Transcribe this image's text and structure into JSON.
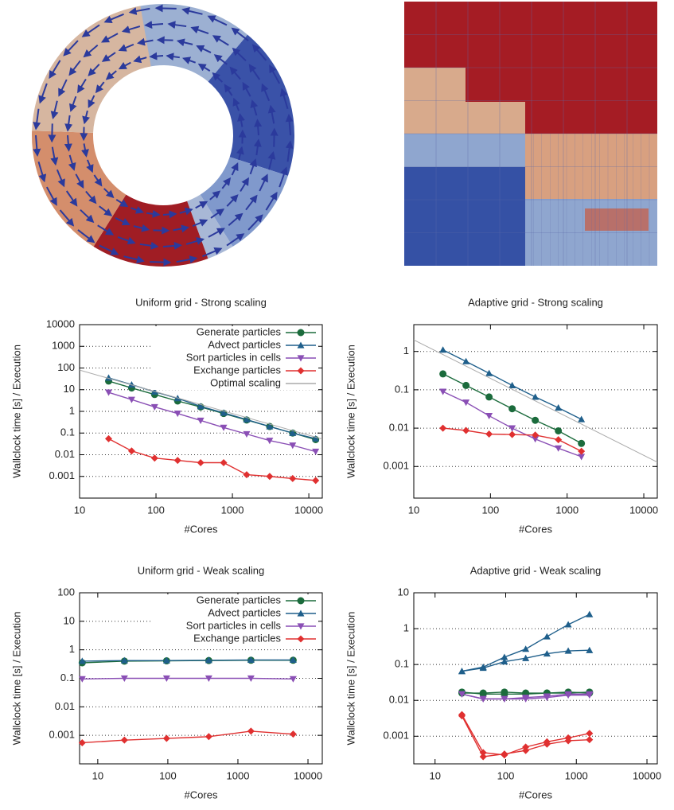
{
  "chart_data": [
    {
      "type": "line",
      "title": "Uniform grid - Strong scaling",
      "xlabel": "#Cores",
      "ylabel": "Wallclock time [s] / Execution",
      "xscale": "log",
      "yscale": "log",
      "xlim": [
        10,
        15000
      ],
      "ylim": [
        0.0001,
        10000
      ],
      "xticks": [
        10,
        100,
        1000,
        10000
      ],
      "yticks": [
        0.001,
        0.01,
        0.1,
        1,
        10,
        100,
        1000,
        10000
      ],
      "grid": true,
      "legend": "top-right",
      "series": [
        {
          "name": "Generate particles",
          "color": "#1b6b3c",
          "marker": "circle",
          "x": [
            24,
            48,
            96,
            192,
            384,
            768,
            1536,
            3072,
            6144,
            12288
          ],
          "values": [
            25,
            12,
            6,
            3,
            1.6,
            0.8,
            0.4,
            0.2,
            0.1,
            0.05
          ]
        },
        {
          "name": "Advect particles",
          "color": "#1f5f8b",
          "marker": "triangle-up",
          "x": [
            24,
            48,
            96,
            192,
            384,
            768,
            1536,
            3072,
            6144,
            12288
          ],
          "values": [
            35,
            17,
            8,
            4,
            1.7,
            0.85,
            0.42,
            0.2,
            0.1,
            0.055
          ]
        },
        {
          "name": "Sort particles in cells",
          "color": "#8a4fb5",
          "marker": "triangle-down",
          "x": [
            24,
            48,
            96,
            192,
            384,
            768,
            1536,
            3072,
            6144,
            12288
          ],
          "values": [
            7.5,
            3.5,
            1.6,
            0.8,
            0.38,
            0.18,
            0.09,
            0.045,
            0.027,
            0.014
          ]
        },
        {
          "name": "Exchange particles",
          "color": "#e03030",
          "marker": "diamond",
          "x": [
            24,
            48,
            96,
            192,
            384,
            768,
            1536,
            3072,
            6144,
            12288
          ],
          "values": [
            0.055,
            0.015,
            0.007,
            0.0055,
            0.0043,
            0.0043,
            0.0012,
            0.001,
            0.0008,
            0.00065
          ]
        },
        {
          "name": "Optimal scaling",
          "color": "#aaaaaa",
          "marker": "none",
          "x": [
            10,
            15000
          ],
          "values": [
            80,
            0.053
          ]
        }
      ]
    },
    {
      "type": "line",
      "title": "Adaptive grid - Strong scaling",
      "xlabel": "#Cores",
      "ylabel": "Wallclock time [s] / Execution",
      "xscale": "log",
      "yscale": "log",
      "xlim": [
        10,
        15000
      ],
      "ylim": [
        0.00015,
        5
      ],
      "xticks": [
        10,
        100,
        1000,
        10000
      ],
      "yticks": [
        0.001,
        0.01,
        0.1,
        1
      ],
      "grid": true,
      "series": [
        {
          "color": "#1b6b3c",
          "marker": "circle",
          "x": [
            24,
            48,
            96,
            192,
            384,
            768,
            1536
          ],
          "values": [
            0.26,
            0.13,
            0.065,
            0.032,
            0.016,
            0.0085,
            0.004
          ]
        },
        {
          "color": "#1f5f8b",
          "marker": "triangle-up",
          "x": [
            24,
            48,
            96,
            192,
            384,
            768,
            1536
          ],
          "values": [
            1.1,
            0.55,
            0.27,
            0.13,
            0.065,
            0.034,
            0.017
          ]
        },
        {
          "color": "#8a4fb5",
          "marker": "triangle-down",
          "x": [
            24,
            48,
            96,
            192,
            384,
            768,
            1536
          ],
          "values": [
            0.09,
            0.047,
            0.021,
            0.01,
            0.0052,
            0.003,
            0.0018
          ]
        },
        {
          "color": "#e03030",
          "marker": "diamond",
          "x": [
            24,
            48,
            96,
            192,
            384,
            768,
            1536
          ],
          "values": [
            0.01,
            0.0087,
            0.007,
            0.0068,
            0.0066,
            0.005,
            0.0025
          ]
        },
        {
          "color": "#aaaaaa",
          "marker": "none",
          "x": [
            10,
            15000
          ],
          "values": [
            2,
            0.0013
          ]
        }
      ]
    },
    {
      "type": "line",
      "title": "Uniform grid - Weak scaling",
      "xlabel": "#Cores",
      "ylabel": "Wallclock time [s] / Execution",
      "xscale": "log",
      "yscale": "log",
      "xlim": [
        5.5,
        16000
      ],
      "ylim": [
        0.0001,
        100
      ],
      "xticks": [
        10,
        100,
        1000,
        10000
      ],
      "yticks": [
        0.001,
        0.01,
        0.1,
        1,
        10,
        100
      ],
      "grid": true,
      "legend": "top-right",
      "series": [
        {
          "name": "Generate particles",
          "color": "#1b6b3c",
          "marker": "circle",
          "x": [
            6,
            24,
            96,
            384,
            1536,
            6144
          ],
          "values": [
            0.35,
            0.4,
            0.41,
            0.42,
            0.43,
            0.43
          ]
        },
        {
          "name": "Advect particles",
          "color": "#1f5f8b",
          "marker": "triangle-up",
          "x": [
            6,
            24,
            96,
            384,
            1536,
            6144
          ],
          "values": [
            0.4,
            0.42,
            0.42,
            0.43,
            0.44,
            0.44
          ]
        },
        {
          "name": "Sort particles in cells",
          "color": "#8a4fb5",
          "marker": "triangle-down",
          "x": [
            6,
            24,
            96,
            384,
            1536,
            6144
          ],
          "values": [
            0.095,
            0.1,
            0.1,
            0.1,
            0.1,
            0.095
          ]
        },
        {
          "name": "Exchange particles",
          "color": "#e03030",
          "marker": "diamond",
          "x": [
            6,
            24,
            96,
            384,
            1536,
            6144
          ],
          "values": [
            0.00055,
            0.00068,
            0.00078,
            0.0009,
            0.0014,
            0.0011
          ]
        }
      ]
    },
    {
      "type": "line",
      "title": "Adaptive grid - Weak scaling",
      "xlabel": "#Cores",
      "ylabel": "Wallclock time [s] / Execution",
      "xscale": "log",
      "yscale": "log",
      "xlim": [
        5,
        14000
      ],
      "ylim": [
        0.00017,
        10
      ],
      "xticks": [
        10,
        100,
        1000,
        10000
      ],
      "yticks": [
        0.001,
        0.01,
        0.1,
        1,
        10
      ],
      "grid": true,
      "series": [
        {
          "color": "#1b6b3c",
          "marker": "circle",
          "x": [
            24,
            48,
            96,
            192,
            384,
            768,
            1536
          ],
          "values": [
            0.016,
            0.016,
            0.017,
            0.016,
            0.016,
            0.017,
            0.016
          ]
        },
        {
          "color": "#1b6b3c",
          "marker": "circle",
          "x": [
            24,
            48,
            96,
            192,
            384,
            768,
            1536
          ],
          "values": [
            0.017,
            0.015,
            0.015,
            0.015,
            0.016,
            0.016,
            0.017
          ]
        },
        {
          "color": "#1f5f8b",
          "marker": "triangle-up",
          "x": [
            24,
            48,
            96,
            192,
            384,
            768,
            1536
          ],
          "values": [
            0.065,
            0.085,
            0.16,
            0.27,
            0.6,
            1.3,
            2.5
          ]
        },
        {
          "color": "#1f5f8b",
          "marker": "triangle-up",
          "x": [
            24,
            48,
            96,
            192,
            384,
            768,
            1536
          ],
          "values": [
            0.065,
            0.08,
            0.12,
            0.15,
            0.2,
            0.24,
            0.25
          ]
        },
        {
          "color": "#8a4fb5",
          "marker": "triangle-down",
          "x": [
            24,
            48,
            96,
            192,
            384,
            768,
            1536
          ],
          "values": [
            0.015,
            0.011,
            0.011,
            0.011,
            0.012,
            0.014,
            0.014
          ]
        },
        {
          "color": "#8a4fb5",
          "marker": "triangle-down",
          "x": [
            24,
            48,
            96,
            192,
            384,
            768,
            1536
          ],
          "values": [
            0.015,
            0.011,
            0.011,
            0.012,
            0.013,
            0.015,
            0.015
          ]
        },
        {
          "color": "#e03030",
          "marker": "diamond",
          "x": [
            24,
            48,
            96,
            192,
            384,
            768,
            1536
          ],
          "values": [
            0.004,
            0.00035,
            0.0003,
            0.0005,
            0.0007,
            0.0009,
            0.0012
          ]
        },
        {
          "color": "#e03030",
          "marker": "diamond",
          "x": [
            24,
            48,
            96,
            192,
            384,
            768,
            1536
          ],
          "values": [
            0.0037,
            0.00027,
            0.00032,
            0.0004,
            0.0006,
            0.00075,
            0.0008
          ]
        }
      ]
    }
  ]
}
